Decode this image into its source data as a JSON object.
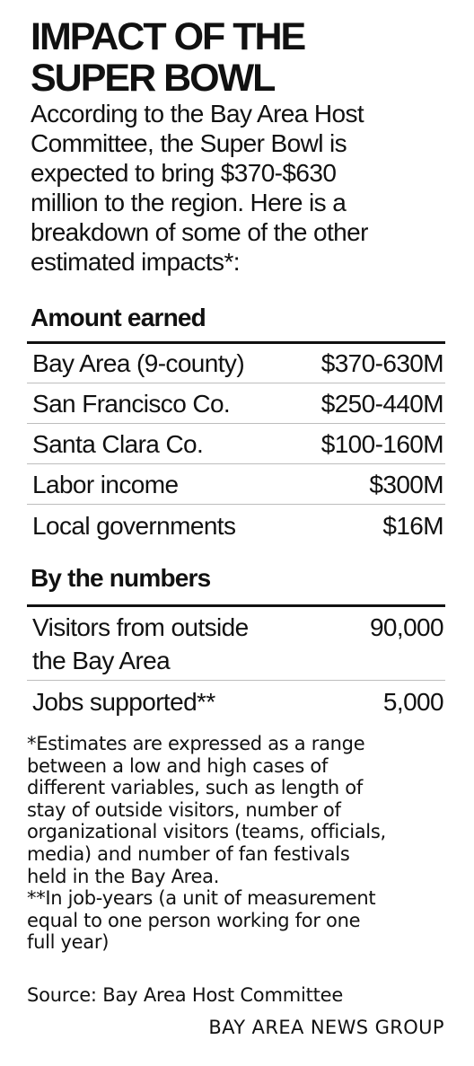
{
  "title": {
    "lines": [
      "IMPACT OF THE",
      "SUPER BOWL"
    ]
  },
  "intro": {
    "lines": [
      "According to the Bay Area Host",
      "Committee, the Super Bowl is",
      "expected to bring $370-$630",
      "million to the region. Here is a",
      "breakdown of some of the other",
      "estimated impacts*:"
    ]
  },
  "amount_earned": {
    "heading": "Amount earned",
    "rows": [
      {
        "label": "Bay Area (9-county)",
        "value": "$370-630M"
      },
      {
        "label": "San Francisco Co.",
        "value": "$250-440M"
      },
      {
        "label": "Santa Clara Co.",
        "value": "$100-160M"
      },
      {
        "label": "Labor income",
        "value": "$300M"
      },
      {
        "label": "Local governments",
        "value": "$16M"
      }
    ]
  },
  "by_the_numbers": {
    "heading": "By the numbers",
    "rows": [
      {
        "label_lines": [
          "Visitors from outside",
          "the Bay Area"
        ],
        "value": "90,000"
      },
      {
        "label_lines": [
          "Jobs supported**"
        ],
        "value": "5,000"
      }
    ]
  },
  "notes": {
    "lines": [
      "*Estimates are expressed as a range",
      "between a low and high cases of",
      "different variables, such as length of",
      "stay of outside visitors, number of",
      "organizational visitors (teams, officials,",
      "media) and number of fan festivals",
      "held in the Bay Area.",
      "**In job-years (a unit of measurement",
      "equal to one person working for one",
      "full year)"
    ]
  },
  "source": "Source: Bay Area Host Committee",
  "credit": "BAY AREA NEWS GROUP"
}
